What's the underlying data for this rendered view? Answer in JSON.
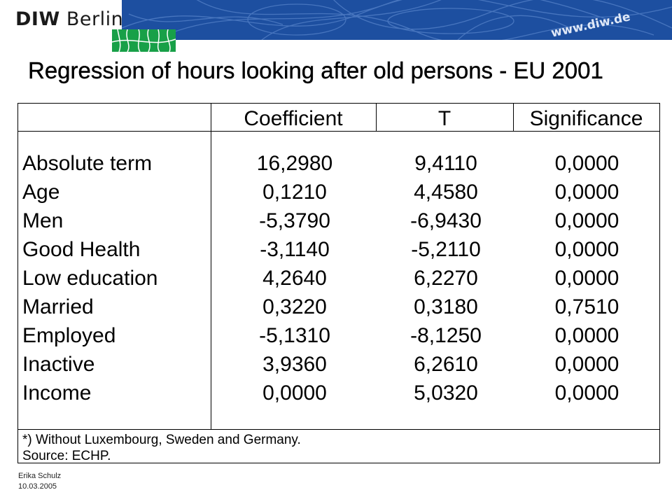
{
  "header": {
    "logo_bold": "DIW",
    "logo_rest": "Berlin",
    "url": "www.diw.de",
    "accent_blue": "#1d4fa0",
    "accent_green": "#18a048"
  },
  "title": "Regression of hours looking after old persons - EU 2001",
  "table": {
    "columns": [
      "Coefficient",
      "T",
      "Significance"
    ],
    "rows": [
      {
        "label": "Absolute term",
        "coefficient": "16,2980",
        "t": "9,4110",
        "significance": "0,0000"
      },
      {
        "label": "Age",
        "coefficient": "0,1210",
        "t": "4,4580",
        "significance": "0,0000"
      },
      {
        "label": "Men",
        "coefficient": "-5,3790",
        "t": "-6,9430",
        "significance": "0,0000"
      },
      {
        "label": "Good Health",
        "coefficient": "-3,1140",
        "t": "-5,2110",
        "significance": "0,0000"
      },
      {
        "label": "Low education",
        "coefficient": "4,2640",
        "t": "6,2270",
        "significance": "0,0000"
      },
      {
        "label": "Married",
        "coefficient": "0,3220",
        "t": "0,3180",
        "significance": "0,7510"
      },
      {
        "label": "Employed",
        "coefficient": "-5,1310",
        "t": "-8,1250",
        "significance": "0,0000"
      },
      {
        "label": "Inactive",
        "coefficient": "3,9360",
        "t": "6,2610",
        "significance": "0,0000"
      },
      {
        "label": "Income",
        "coefficient": "0,0000",
        "t": "5,0320",
        "significance": "0,0000"
      }
    ],
    "notes": [
      "*) Without Luxembourg, Sweden and Germany.",
      "Source: ECHP."
    ]
  },
  "footer": {
    "author": "Erika Schulz",
    "date": "10.03.2005"
  }
}
